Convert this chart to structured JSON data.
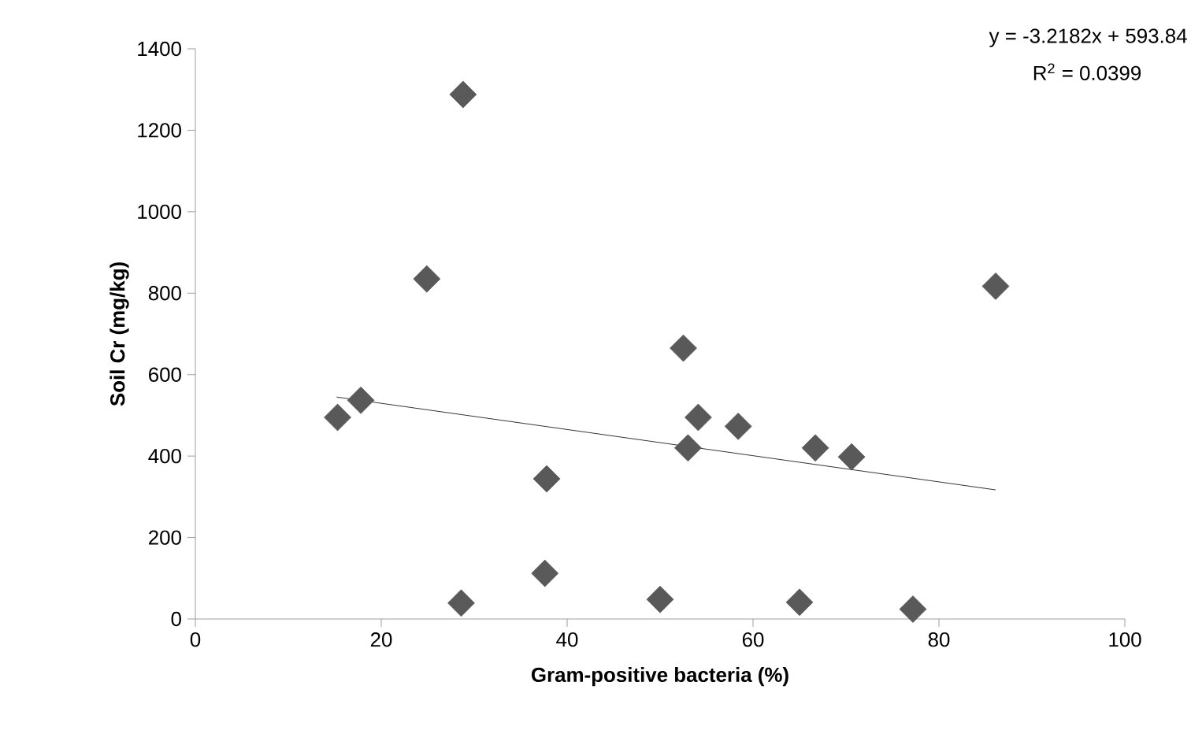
{
  "chart_data": {
    "type": "scatter",
    "xlabel": "Gram-positive bacteria (%)",
    "ylabel": "Soil Cr (mg/kg)",
    "xlim": [
      0,
      100
    ],
    "ylim": [
      0,
      1400
    ],
    "xticks": [
      0,
      20,
      40,
      60,
      80,
      100
    ],
    "yticks": [
      0,
      200,
      400,
      600,
      800,
      1000,
      1200,
      1400
    ],
    "grid": false,
    "annotations": [
      "y = -3.2182x + 593.84",
      "R$^{2}$ = 0.0399"
    ],
    "series": [
      {
        "marker": "diamond",
        "color": "#595959",
        "x": [
          15.3,
          17.8,
          24.9,
          28.8,
          28.6,
          37.8,
          37.6,
          52.5,
          53.0,
          54.1,
          58.4,
          66.7,
          70.6,
          50.0,
          65.0,
          77.2,
          86.1
        ],
        "values": [
          495,
          537,
          835,
          1288,
          39,
          344,
          112,
          665,
          420,
          495,
          473,
          420,
          398,
          48,
          41,
          24,
          817
        ]
      },
      {
        "type": "line",
        "color": "#000000",
        "x": [
          15.2,
          86.1
        ],
        "values": [
          545,
          317
        ]
      }
    ]
  }
}
